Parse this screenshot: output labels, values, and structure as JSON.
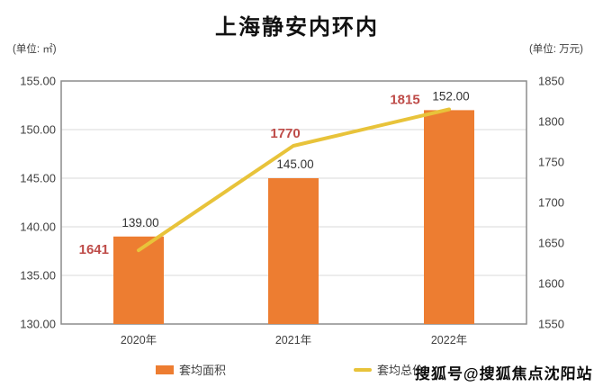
{
  "title": "上海静安内环内",
  "unit_left": "(单位: ㎡)",
  "unit_right": "(单位: 万元)",
  "watermark": "搜狐号@搜狐焦点沈阳站",
  "colors": {
    "bar": "#ED7D31",
    "line": "#E8C33A",
    "red_label": "#BE4B48",
    "axis_text": "#404040",
    "data_label": "#333333",
    "grid": "#D9D9D9",
    "border": "#8C8C8C",
    "title": "#111111"
  },
  "legend": {
    "items": [
      {
        "label": "套均面积",
        "type": "bar"
      },
      {
        "label": "套均总价",
        "type": "line"
      }
    ]
  },
  "chart_data": {
    "type": "bar",
    "subtype": "bar+line combo, dual axis",
    "title": "上海静安内环内",
    "categories": [
      "2020年",
      "2021年",
      "2022年"
    ],
    "series": [
      {
        "name": "套均面积",
        "type": "bar",
        "axis": "left",
        "values": [
          139.0,
          145.0,
          152.0
        ],
        "labels": [
          "139.00",
          "145.00",
          "152.00"
        ]
      },
      {
        "name": "套均总价",
        "type": "line",
        "axis": "right",
        "values": [
          1641,
          1770,
          1815
        ],
        "labels": [
          "1641",
          "1770",
          "1815"
        ]
      }
    ],
    "left_axis": {
      "unit": "㎡",
      "min": 130,
      "max": 155,
      "step": 5,
      "ticks": [
        "155.00",
        "150.00",
        "145.00",
        "140.00",
        "135.00",
        "130.00"
      ]
    },
    "right_axis": {
      "unit": "万元",
      "min": 1550,
      "max": 1850,
      "step": 50,
      "ticks": [
        "1850",
        "1800",
        "1750",
        "1700",
        "1650",
        "1600",
        "1550"
      ]
    },
    "grid": true,
    "legend_position": "bottom"
  }
}
